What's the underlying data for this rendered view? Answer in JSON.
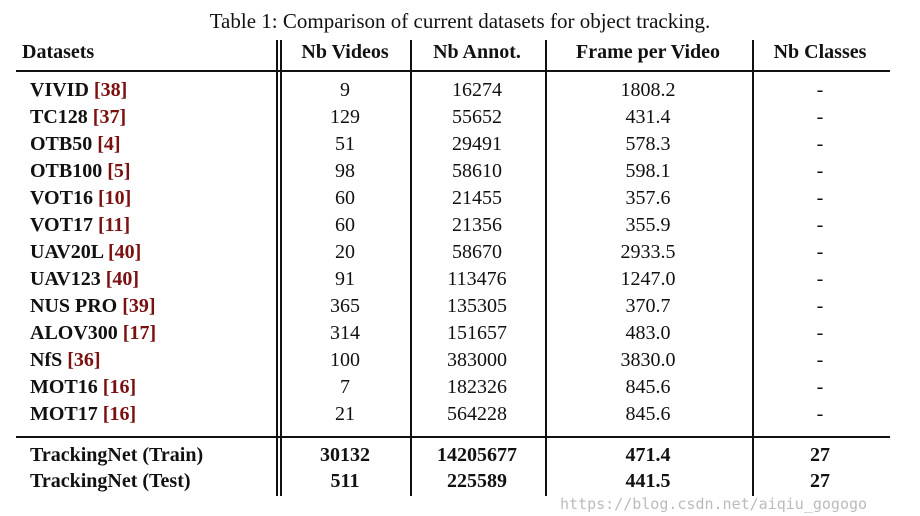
{
  "caption": "Table 1: Comparison of current datasets for object tracking.",
  "headers": [
    "Datasets",
    "Nb Videos",
    "Nb Annot.",
    "Frame per Video",
    "Nb Classes"
  ],
  "rows": [
    {
      "name": "VIVID",
      "cite": "[38]",
      "videos": "9",
      "annot": "16274",
      "fpv": "1808.2",
      "classes": "-"
    },
    {
      "name": "TC128",
      "cite": "[37]",
      "videos": "129",
      "annot": "55652",
      "fpv": "431.4",
      "classes": "-"
    },
    {
      "name": "OTB50",
      "cite": "[4]",
      "videos": "51",
      "annot": "29491",
      "fpv": "578.3",
      "classes": "-"
    },
    {
      "name": "OTB100",
      "cite": "[5]",
      "videos": "98",
      "annot": "58610",
      "fpv": "598.1",
      "classes": "-"
    },
    {
      "name": "VOT16",
      "cite": "[10]",
      "videos": "60",
      "annot": "21455",
      "fpv": "357.6",
      "classes": "-"
    },
    {
      "name": "VOT17",
      "cite": "[11]",
      "videos": "60",
      "annot": "21356",
      "fpv": "355.9",
      "classes": "-"
    },
    {
      "name": "UAV20L",
      "cite": "[40]",
      "videos": "20",
      "annot": "58670",
      "fpv": "2933.5",
      "classes": "-"
    },
    {
      "name": "UAV123",
      "cite": "[40]",
      "videos": "91",
      "annot": "113476",
      "fpv": "1247.0",
      "classes": "-"
    },
    {
      "name": "NUS PRO",
      "cite": "[39]",
      "videos": "365",
      "annot": "135305",
      "fpv": "370.7",
      "classes": "-"
    },
    {
      "name": "ALOV300",
      "cite": "[17]",
      "videos": "314",
      "annot": "151657",
      "fpv": "483.0",
      "classes": "-"
    },
    {
      "name": "NfS",
      "cite": "[36]",
      "videos": "100",
      "annot": "383000",
      "fpv": "3830.0",
      "classes": "-"
    },
    {
      "name": "MOT16",
      "cite": "[16]",
      "videos": "7",
      "annot": "182326",
      "fpv": "845.6",
      "classes": "-"
    },
    {
      "name": "MOT17",
      "cite": "[16]",
      "videos": "21",
      "annot": "564228",
      "fpv": "845.6",
      "classes": "-"
    }
  ],
  "summary_rows": [
    {
      "name": "TrackingNet (Train)",
      "videos": "30132",
      "annot": "14205677",
      "fpv": "471.4",
      "classes": "27"
    },
    {
      "name": "TrackingNet (Test)",
      "videos": "511",
      "annot": "225589",
      "fpv": "441.5",
      "classes": "27"
    }
  ],
  "watermark": "https://blog.csdn.net/aiqiu_gogogo"
}
